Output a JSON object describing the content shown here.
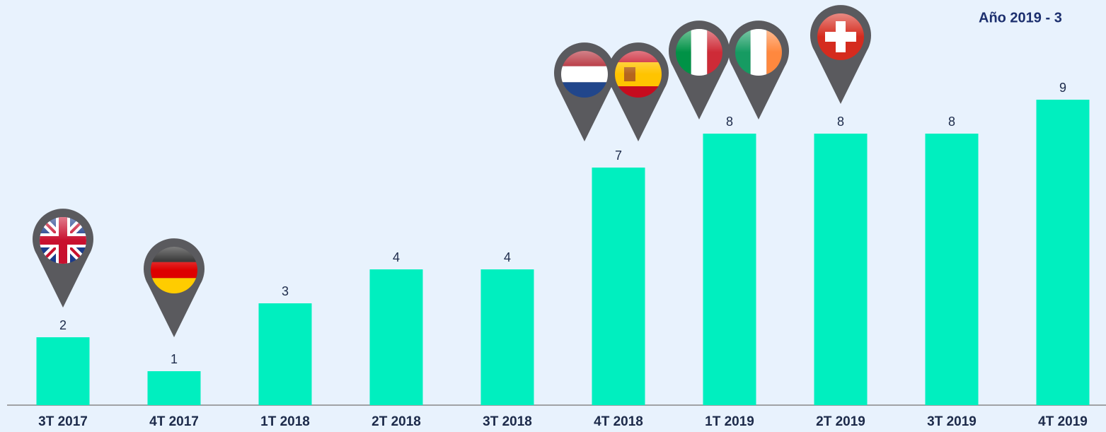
{
  "chart_data": {
    "type": "bar",
    "title": "Año 2019 - 3",
    "categories": [
      "3T 2017",
      "4T 2017",
      "1T 2018",
      "2T 2018",
      "3T 2018",
      "4T 2018",
      "1T 2019",
      "2T 2019",
      "3T 2019",
      "4T 2019"
    ],
    "values": [
      2,
      1,
      3,
      4,
      4,
      7,
      8,
      8,
      8,
      9
    ],
    "color": "#00efbf",
    "ylim": [
      0,
      10
    ]
  }
}
